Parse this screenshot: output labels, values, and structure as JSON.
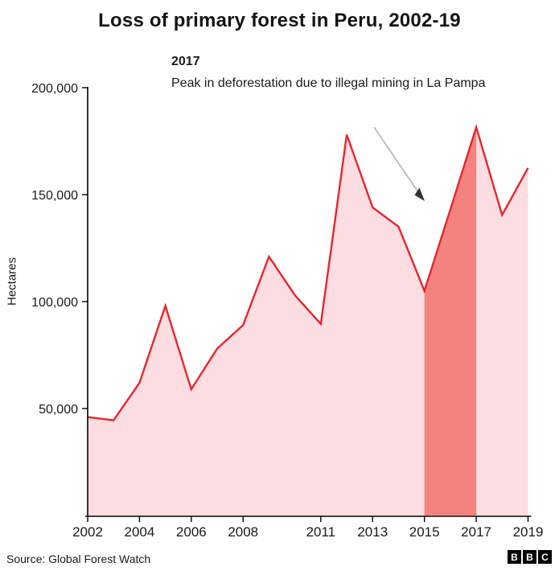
{
  "chart_data": {
    "type": "area",
    "title": "Loss of primary forest in Peru, 2002-19",
    "xlabel": "",
    "ylabel": "Hectares",
    "x": [
      2002,
      2003,
      2004,
      2005,
      2006,
      2007,
      2008,
      2009,
      2010,
      2011,
      2012,
      2013,
      2014,
      2015,
      2016,
      2017,
      2018,
      2019
    ],
    "values": [
      46000,
      44500,
      62000,
      98000,
      59000,
      78000,
      89000,
      121000,
      103000,
      89500,
      178000,
      144000,
      135000,
      105000,
      143000,
      181500,
      140500,
      162500
    ],
    "xlim": [
      2002,
      2019
    ],
    "ylim": [
      0,
      200000
    ],
    "grid": false,
    "legend": "none",
    "x_ticks": [
      {
        "value": 2002,
        "label": "2002"
      },
      {
        "value": 2004,
        "label": "2004"
      },
      {
        "value": 2006,
        "label": "2006"
      },
      {
        "value": 2008,
        "label": "2008"
      },
      {
        "value": 2011,
        "label": "2011"
      },
      {
        "value": 2013,
        "label": "2013"
      },
      {
        "value": 2015,
        "label": "2015"
      },
      {
        "value": 2017,
        "label": "2017"
      },
      {
        "value": 2019,
        "label": "2019"
      }
    ],
    "y_ticks": [
      {
        "value": 200000,
        "label": "200,000"
      },
      {
        "value": 150000,
        "label": "150,000"
      },
      {
        "value": 100000,
        "label": "100,000"
      },
      {
        "value": 50000,
        "label": "50,000"
      }
    ],
    "highlight_range": [
      2015,
      2017
    ],
    "annotation": {
      "heading": "2017",
      "text": "Peak in deforestation due to illegal mining in La Pampa"
    },
    "colors": {
      "line": "#e8252d",
      "area_fill": "#fcdde1",
      "highlight_fill": "#f4827f",
      "axis": "#000000",
      "arrow_line": "#b3b3b3",
      "arrow_head": "#333333",
      "text": "#1a1a1a"
    }
  },
  "footer": {
    "source": "Source: Global Forest Watch",
    "logo_letters": [
      "B",
      "B",
      "C"
    ]
  }
}
